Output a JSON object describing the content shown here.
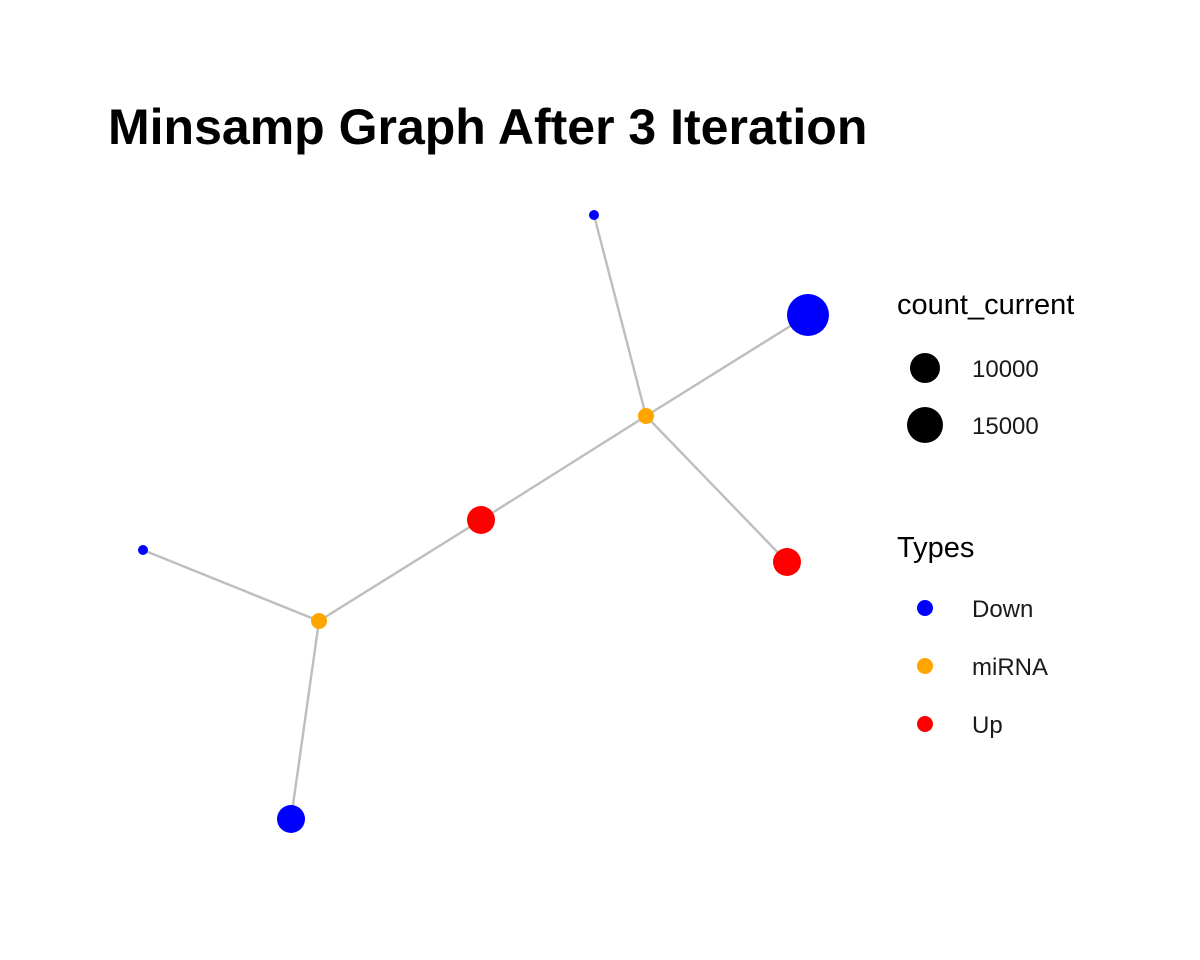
{
  "title": "Minsamp Graph After 3 Iteration",
  "colors": {
    "edge": "#bebebe",
    "Down": "#0000ff",
    "miRNA": "#ffa500",
    "Up": "#ff0000",
    "size_key": "#000000"
  },
  "graph": {
    "nodes": [
      {
        "id": "n1",
        "type": "Down",
        "size": "small"
      },
      {
        "id": "n2",
        "type": "Down",
        "size": "large"
      },
      {
        "id": "n3",
        "type": "miRNA",
        "size": "small"
      },
      {
        "id": "n4",
        "type": "Up",
        "size": "medium"
      },
      {
        "id": "n5",
        "type": "Up",
        "size": "medium"
      },
      {
        "id": "n6",
        "type": "Down",
        "size": "small"
      },
      {
        "id": "n7",
        "type": "miRNA",
        "size": "small"
      },
      {
        "id": "n8",
        "type": "Down",
        "size": "medium"
      }
    ],
    "edges": [
      [
        "n1",
        "n3"
      ],
      [
        "n2",
        "n3"
      ],
      [
        "n3",
        "n5"
      ],
      [
        "n3",
        "n4"
      ],
      [
        "n4",
        "n7"
      ],
      [
        "n6",
        "n7"
      ],
      [
        "n7",
        "n8"
      ]
    ]
  },
  "legend": {
    "size_title": "count_current",
    "size_items": [
      {
        "label": "10000"
      },
      {
        "label": "15000"
      }
    ],
    "type_title": "Types",
    "type_items": [
      {
        "label": "Down",
        "color": "#0000ff"
      },
      {
        "label": "miRNA",
        "color": "#ffa500"
      },
      {
        "label": "Up",
        "color": "#ff0000"
      }
    ]
  }
}
